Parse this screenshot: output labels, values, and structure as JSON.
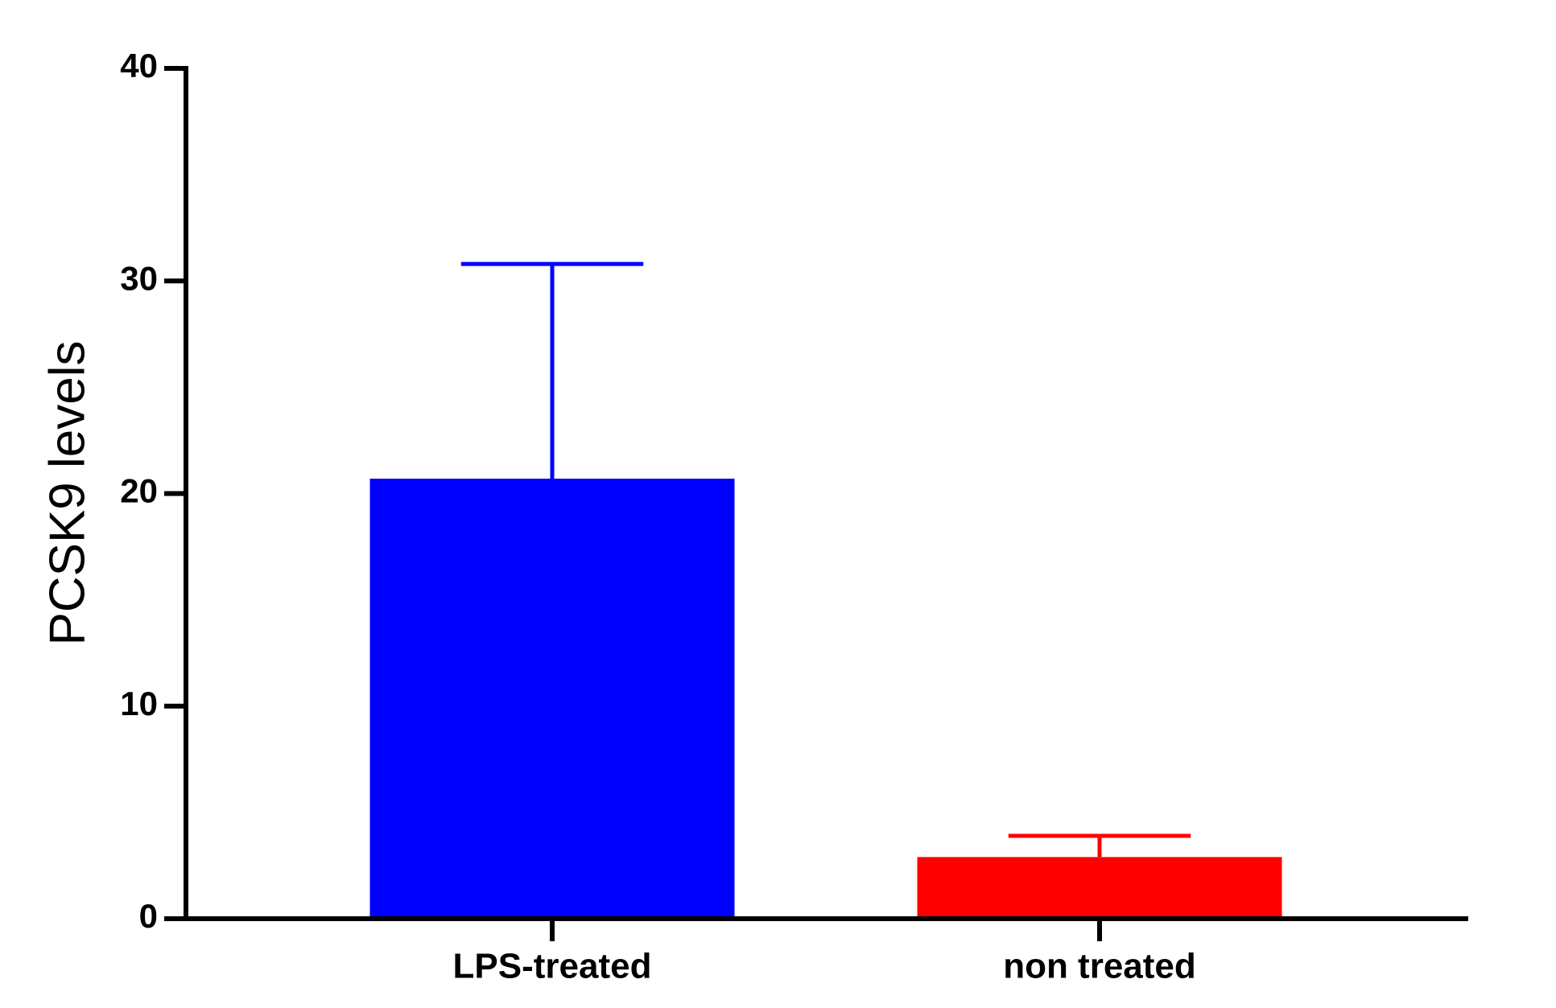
{
  "chart_data": {
    "type": "bar",
    "y_label": "PCSK9 levels",
    "categories": [
      "LPS-treated",
      "non treated"
    ],
    "values": [
      20.7,
      2.9
    ],
    "errors": [
      10.1,
      1.0
    ],
    "colors": [
      "#0000ff",
      "#ff0000"
    ],
    "ylim": [
      0,
      40
    ],
    "yticks": [
      0,
      10,
      20,
      30,
      40
    ],
    "grid": false
  }
}
